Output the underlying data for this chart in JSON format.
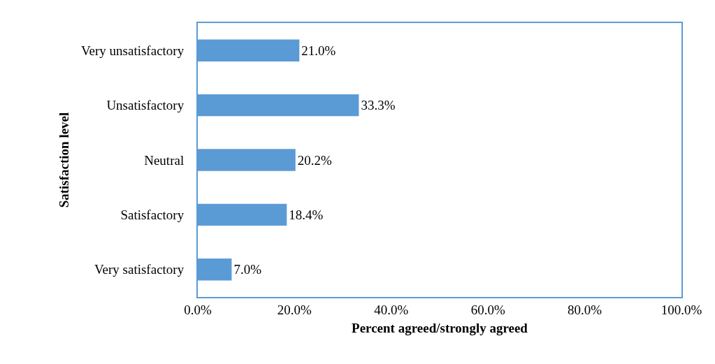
{
  "chart_data": {
    "type": "bar",
    "orientation": "horizontal",
    "xlabel": "Percent agreed/strongly agreed",
    "ylabel": "Satisfaction level",
    "categories": [
      "Very unsatisfactory",
      "Unsatisfactory",
      "Neutral",
      "Satisfactory",
      "Very satisfactory"
    ],
    "values": [
      21.0,
      33.3,
      20.2,
      18.4,
      7.0
    ],
    "value_labels": [
      "21.0%",
      "33.3%",
      "20.2%",
      "18.4%",
      "7.0%"
    ],
    "color": "#5b9bd5",
    "xlim": [
      0,
      100
    ],
    "xticks": [
      {
        "value": 0,
        "label": "0.0%"
      },
      {
        "value": 20,
        "label": "20.0%"
      },
      {
        "value": 40,
        "label": "40.0%"
      },
      {
        "value": 60,
        "label": "60.0%"
      },
      {
        "value": 80,
        "label": "80.0%"
      },
      {
        "value": 100,
        "label": "100.0%"
      }
    ],
    "grid": false
  }
}
